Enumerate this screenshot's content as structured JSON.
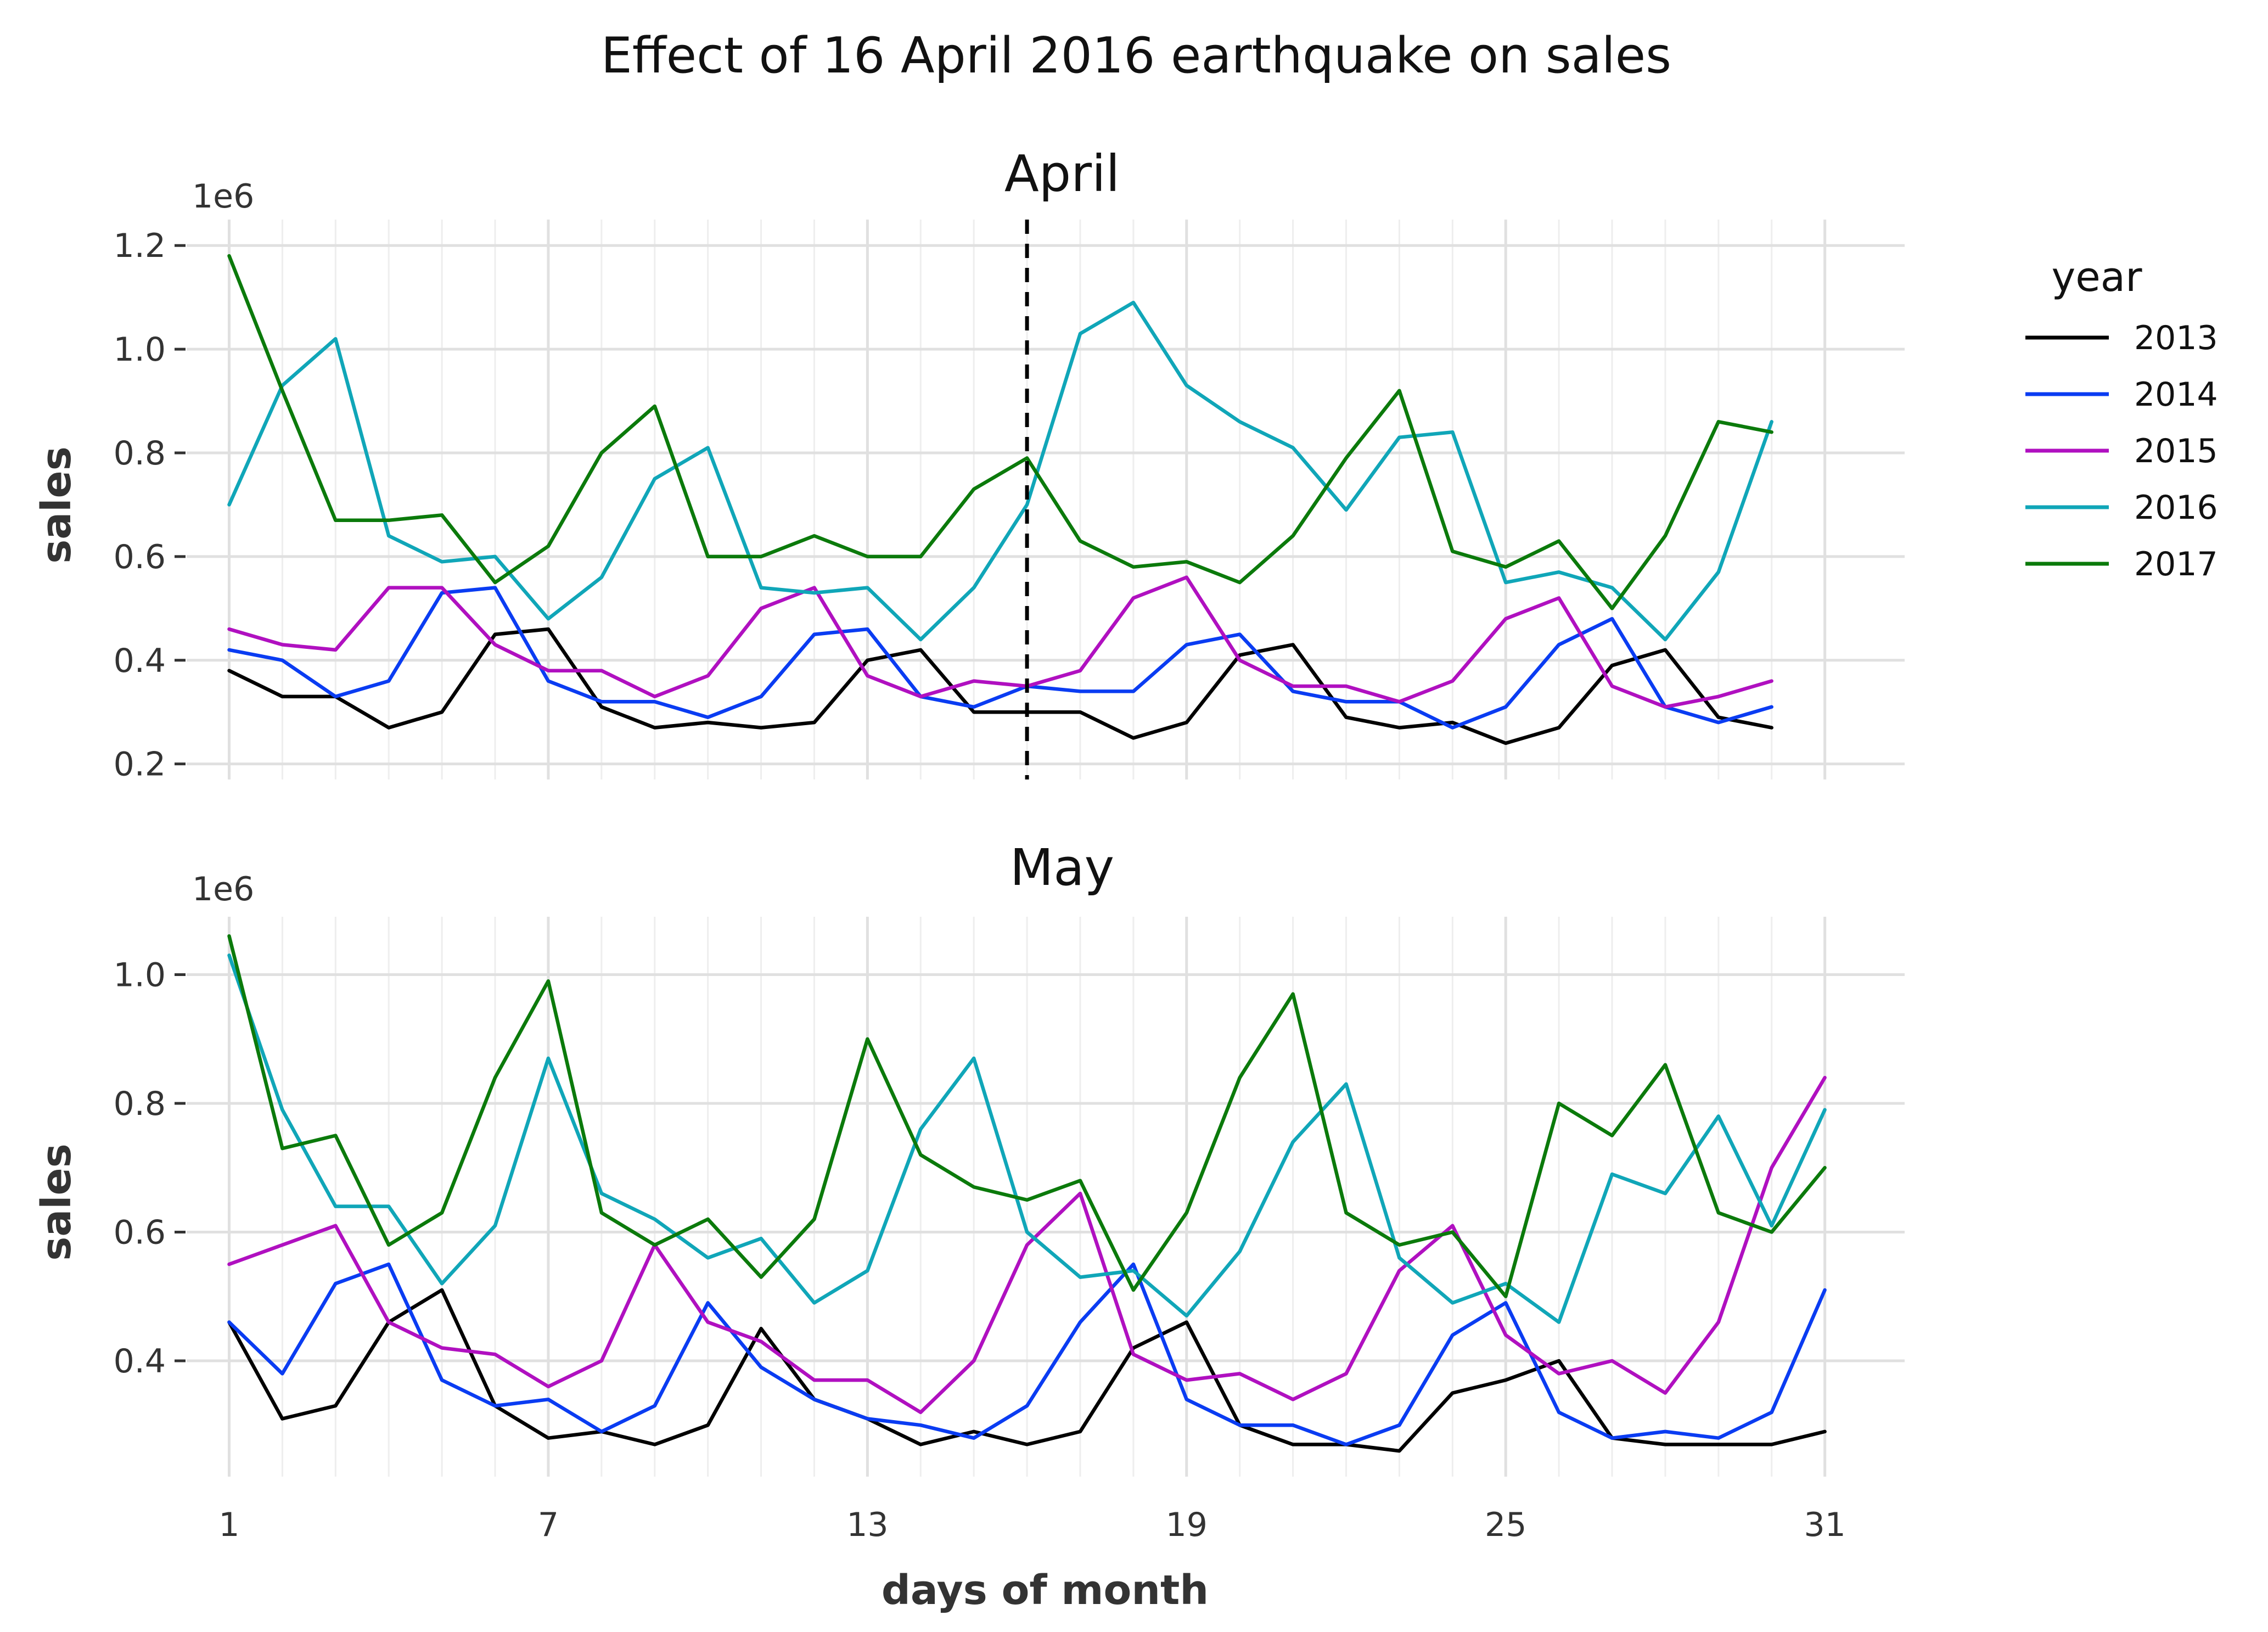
{
  "title": "Effect of 16 April 2016 earthquake on sales",
  "legend": {
    "title": "year",
    "items": [
      {
        "name": "2013",
        "color": "#000000"
      },
      {
        "name": "2014",
        "color": "#0a3cf2"
      },
      {
        "name": "2015",
        "color": "#b010c0"
      },
      {
        "name": "2016",
        "color": "#10a6b8"
      },
      {
        "name": "2017",
        "color": "#0b7a0b"
      }
    ]
  },
  "chart_data": [
    {
      "type": "line",
      "title": "April",
      "xlabel": "",
      "ylabel": "sales",
      "y_offset_label": "1e6",
      "x_ticks": [
        1,
        7,
        13,
        19,
        25,
        31
      ],
      "y_ticks": [
        "0.2",
        "0.4",
        "0.6",
        "0.8",
        "1.0",
        "1.2"
      ],
      "y_tick_values": [
        0.2,
        0.4,
        0.6,
        0.8,
        1.0,
        1.2
      ],
      "xlim": [
        0.2,
        32.5
      ],
      "ylim": [
        0.17,
        1.25
      ],
      "vline_x": 16,
      "x": [
        1,
        2,
        3,
        4,
        5,
        6,
        7,
        8,
        9,
        10,
        11,
        12,
        13,
        14,
        15,
        16,
        17,
        18,
        19,
        20,
        21,
        22,
        23,
        24,
        25,
        26,
        27,
        28,
        29,
        30
      ],
      "series": [
        {
          "name": "2013",
          "values": [
            0.38,
            0.33,
            0.33,
            0.27,
            0.3,
            0.45,
            0.46,
            0.31,
            0.27,
            0.28,
            0.27,
            0.28,
            0.4,
            0.42,
            0.3,
            0.3,
            0.3,
            0.25,
            0.28,
            0.41,
            0.43,
            0.29,
            0.27,
            0.28,
            0.24,
            0.27,
            0.39,
            0.42,
            0.29,
            0.27
          ]
        },
        {
          "name": "2014",
          "values": [
            0.42,
            0.4,
            0.33,
            0.36,
            0.53,
            0.54,
            0.36,
            0.32,
            0.32,
            0.29,
            0.33,
            0.45,
            0.46,
            0.33,
            0.31,
            0.35,
            0.34,
            0.34,
            0.43,
            0.45,
            0.34,
            0.32,
            0.32,
            0.27,
            0.31,
            0.43,
            0.48,
            0.31,
            0.28,
            0.31
          ]
        },
        {
          "name": "2015",
          "values": [
            0.46,
            0.43,
            0.42,
            0.54,
            0.54,
            0.43,
            0.38,
            0.38,
            0.33,
            0.37,
            0.5,
            0.54,
            0.37,
            0.33,
            0.36,
            0.35,
            0.38,
            0.52,
            0.56,
            0.4,
            0.35,
            0.35,
            0.32,
            0.36,
            0.48,
            0.52,
            0.35,
            0.31,
            0.33,
            0.36
          ]
        },
        {
          "name": "2016",
          "values": [
            0.7,
            0.93,
            1.02,
            0.64,
            0.59,
            0.6,
            0.48,
            0.56,
            0.75,
            0.81,
            0.54,
            0.53,
            0.54,
            0.44,
            0.54,
            0.7,
            1.03,
            1.09,
            0.93,
            0.86,
            0.81,
            0.69,
            0.83,
            0.84,
            0.55,
            0.57,
            0.54,
            0.44,
            0.57,
            0.86
          ]
        },
        {
          "name": "2017",
          "values": [
            1.18,
            0.92,
            0.67,
            0.67,
            0.68,
            0.55,
            0.62,
            0.8,
            0.89,
            0.6,
            0.6,
            0.64,
            0.6,
            0.6,
            0.73,
            0.79,
            0.63,
            0.58,
            0.59,
            0.55,
            0.64,
            0.79,
            0.92,
            0.61,
            0.58,
            0.63,
            0.5,
            0.64,
            0.86,
            0.84
          ]
        }
      ]
    },
    {
      "type": "line",
      "title": "May",
      "xlabel": "days of month",
      "ylabel": "sales",
      "y_offset_label": "1e6",
      "x_ticks": [
        1,
        7,
        13,
        19,
        25,
        31
      ],
      "y_ticks": [
        "0.4",
        "0.6",
        "0.8",
        "1.0"
      ],
      "y_tick_values": [
        0.4,
        0.6,
        0.8,
        1.0
      ],
      "xlim": [
        0.2,
        32.5
      ],
      "ylim": [
        0.22,
        1.09
      ],
      "x": [
        1,
        2,
        3,
        4,
        5,
        6,
        7,
        8,
        9,
        10,
        11,
        12,
        13,
        14,
        15,
        16,
        17,
        18,
        19,
        20,
        21,
        22,
        23,
        24,
        25,
        26,
        27,
        28,
        29,
        30,
        31
      ],
      "series": [
        {
          "name": "2013",
          "values": [
            0.46,
            0.31,
            0.33,
            0.46,
            0.51,
            0.33,
            0.28,
            0.29,
            0.27,
            0.3,
            0.45,
            0.34,
            0.31,
            0.27,
            0.29,
            0.27,
            0.29,
            0.42,
            0.46,
            0.3,
            0.27,
            0.27,
            0.26,
            0.35,
            0.37,
            0.4,
            0.28,
            0.27,
            0.27,
            0.27,
            0.29
          ]
        },
        {
          "name": "2014",
          "values": [
            0.46,
            0.38,
            0.52,
            0.55,
            0.37,
            0.33,
            0.34,
            0.29,
            0.33,
            0.49,
            0.39,
            0.34,
            0.31,
            0.3,
            0.28,
            0.33,
            0.46,
            0.55,
            0.34,
            0.3,
            0.3,
            0.27,
            0.3,
            0.44,
            0.49,
            0.32,
            0.28,
            0.29,
            0.28,
            0.32,
            0.51
          ]
        },
        {
          "name": "2015",
          "values": [
            0.55,
            0.58,
            0.61,
            0.46,
            0.42,
            0.41,
            0.36,
            0.4,
            0.58,
            0.46,
            0.43,
            0.37,
            0.37,
            0.32,
            0.4,
            0.58,
            0.66,
            0.41,
            0.37,
            0.38,
            0.34,
            0.38,
            0.54,
            0.61,
            0.44,
            0.38,
            0.4,
            0.35,
            0.46,
            0.7,
            0.84
          ]
        },
        {
          "name": "2016",
          "values": [
            1.03,
            0.79,
            0.64,
            0.64,
            0.52,
            0.61,
            0.87,
            0.66,
            0.62,
            0.56,
            0.59,
            0.49,
            0.54,
            0.76,
            0.87,
            0.6,
            0.53,
            0.54,
            0.47,
            0.57,
            0.74,
            0.83,
            0.56,
            0.49,
            0.52,
            0.46,
            0.69,
            0.66,
            0.78,
            0.61,
            0.79
          ]
        },
        {
          "name": "2017",
          "values": [
            1.06,
            0.73,
            0.75,
            0.58,
            0.63,
            0.84,
            0.99,
            0.63,
            0.58,
            0.62,
            0.53,
            0.62,
            0.9,
            0.72,
            0.67,
            0.65,
            0.68,
            0.51,
            0.63,
            0.84,
            0.97,
            0.63,
            0.58,
            0.6,
            0.5,
            0.8,
            0.75,
            0.86,
            0.63,
            0.6,
            0.7
          ]
        }
      ]
    }
  ]
}
